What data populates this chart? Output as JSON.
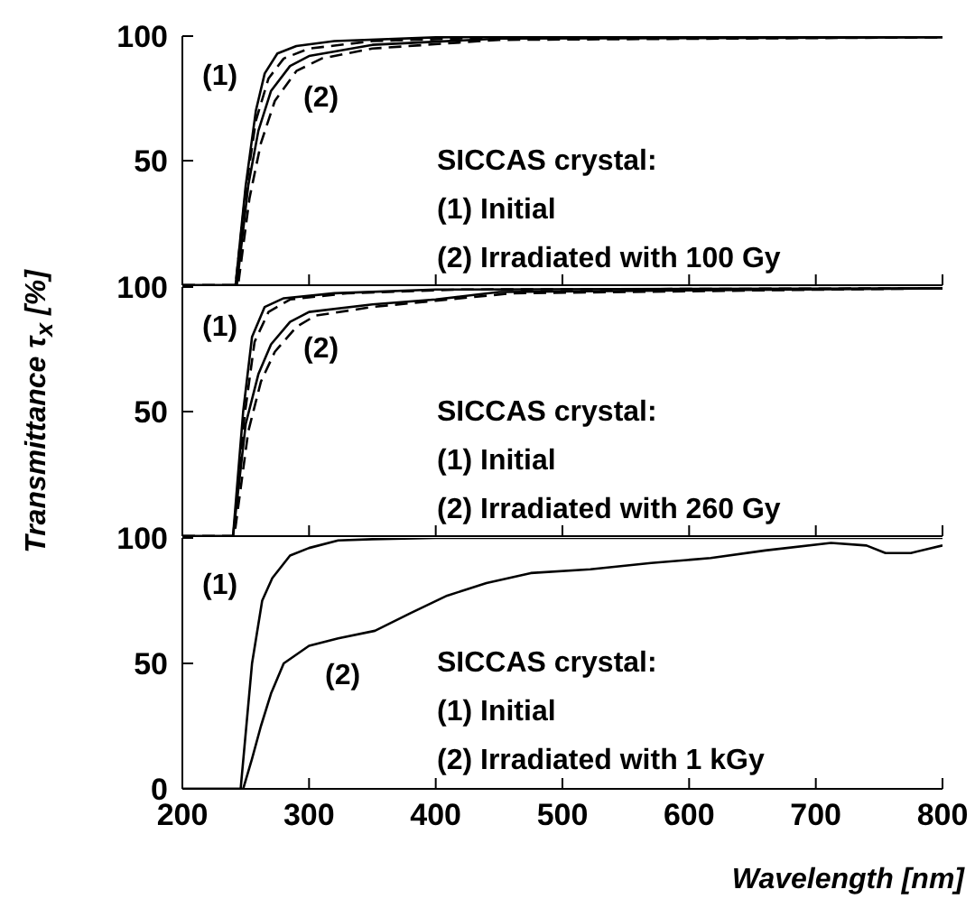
{
  "chart_data": [
    {
      "type": "line",
      "xlim": [
        200,
        800
      ],
      "xticks": [
        200,
        300,
        400,
        500,
        600,
        700,
        800
      ],
      "ylim": [
        0,
        100
      ],
      "yticks": [
        {
          "value": 0,
          "label": null
        },
        50,
        100
      ],
      "tick_labels": "y",
      "annotations": [
        "(1)",
        "(2)",
        "SICCAS crystal:",
        "(1) Initial",
        "(2) Irradiated with 100 Gy"
      ],
      "series": [
        {
          "color": "#000000",
          "line_style": "solid",
          "x": [
            200,
            242,
            250,
            258,
            265,
            275,
            290,
            320,
            400,
            800
          ],
          "values": [
            0,
            0,
            40,
            70,
            85,
            93,
            96,
            98,
            99.5,
            100
          ]
        },
        {
          "color": "#000000",
          "line_style": "dashed",
          "x": [
            200,
            242,
            250,
            258,
            268,
            280,
            300,
            350,
            450,
            800
          ],
          "values": [
            0,
            0,
            38,
            66,
            83,
            91,
            95,
            98,
            99.5,
            100
          ]
        },
        {
          "color": "#000000",
          "line_style": "solid",
          "x": [
            200,
            243,
            252,
            260,
            270,
            285,
            300,
            350,
            450,
            800
          ],
          "values": [
            0,
            0,
            40,
            62,
            78,
            88,
            92,
            96.5,
            99,
            99.5
          ]
        },
        {
          "color": "#000000",
          "line_style": "dashed",
          "x": [
            200,
            244,
            253,
            262,
            273,
            290,
            310,
            350,
            450,
            800
          ],
          "values": [
            0,
            0,
            35,
            57,
            74,
            86,
            91,
            95,
            98.5,
            99.5
          ]
        }
      ]
    },
    {
      "type": "line",
      "ylabel": "Transmittance τ$_{x}$ [%]",
      "xlim": [
        200,
        800
      ],
      "xticks": [
        200,
        300,
        400,
        500,
        600,
        700,
        800
      ],
      "ylim": [
        0,
        100
      ],
      "yticks": [
        {
          "value": 0,
          "label": null
        },
        50,
        100
      ],
      "tick_labels": "y",
      "annotations": [
        "(1)",
        "(2)",
        "SICCAS crystal:",
        "(1) Initial",
        "(2) Irradiated with 260 Gy"
      ],
      "series": [
        {
          "color": "#000000",
          "line_style": "solid",
          "x": [
            200,
            240,
            248,
            255,
            265,
            280,
            320,
            400,
            800
          ],
          "values": [
            0,
            0,
            50,
            80,
            92,
            95.5,
            97.5,
            99,
            99.5
          ]
        },
        {
          "color": "#000000",
          "line_style": "dashed",
          "x": [
            200,
            241,
            249,
            257,
            268,
            285,
            330,
            420,
            800
          ],
          "values": [
            0,
            0,
            48,
            78,
            90,
            95,
            97.5,
            99,
            99.5
          ]
        },
        {
          "color": "#000000",
          "line_style": "solid",
          "x": [
            200,
            240,
            250,
            260,
            270,
            285,
            300,
            350,
            400,
            450,
            800
          ],
          "values": [
            0,
            0,
            45,
            65,
            77,
            86,
            90,
            93,
            95,
            98,
            99.5
          ]
        },
        {
          "color": "#000000",
          "line_style": "dashed",
          "x": [
            200,
            241,
            252,
            262,
            273,
            290,
            305,
            350,
            400,
            460,
            800
          ],
          "values": [
            0,
            0,
            42,
            62,
            74,
            84,
            88.5,
            92,
            94.5,
            97.5,
            99.5
          ]
        }
      ]
    },
    {
      "type": "line",
      "xlabel": "Wavelength [nm]",
      "xlim": [
        200,
        800
      ],
      "xticks": [
        200,
        300,
        400,
        500,
        600,
        700,
        800
      ],
      "ylim": [
        0,
        100
      ],
      "yticks": [
        0,
        50,
        100
      ],
      "annotations": [
        "(1)",
        "(2)",
        "SICCAS crystal:",
        "(1) Initial",
        "(2) Irradiated with 1 kGy"
      ],
      "series": [
        {
          "color": "#000000",
          "line_style": "solid",
          "x": [
            200,
            246,
            255,
            263,
            271,
            285,
            300,
            323,
            350,
            400,
            800
          ],
          "values": [
            0,
            0,
            50,
            75,
            84,
            93,
            96,
            99,
            99.5,
            100,
            100
          ]
        },
        {
          "color": "#000000",
          "line_style": "solid",
          "x": [
            200,
            248,
            255,
            262,
            270,
            280,
            300,
            323,
            352,
            380,
            409,
            440,
            475,
            522,
            570,
            617,
            660,
            712,
            740,
            755,
            775,
            800
          ],
          "values": [
            0,
            0,
            12,
            25,
            38,
            50,
            57,
            60,
            63,
            70,
            77,
            82,
            86,
            87.5,
            90,
            92,
            95,
            98,
            97,
            94,
            94,
            97
          ]
        }
      ]
    }
  ]
}
